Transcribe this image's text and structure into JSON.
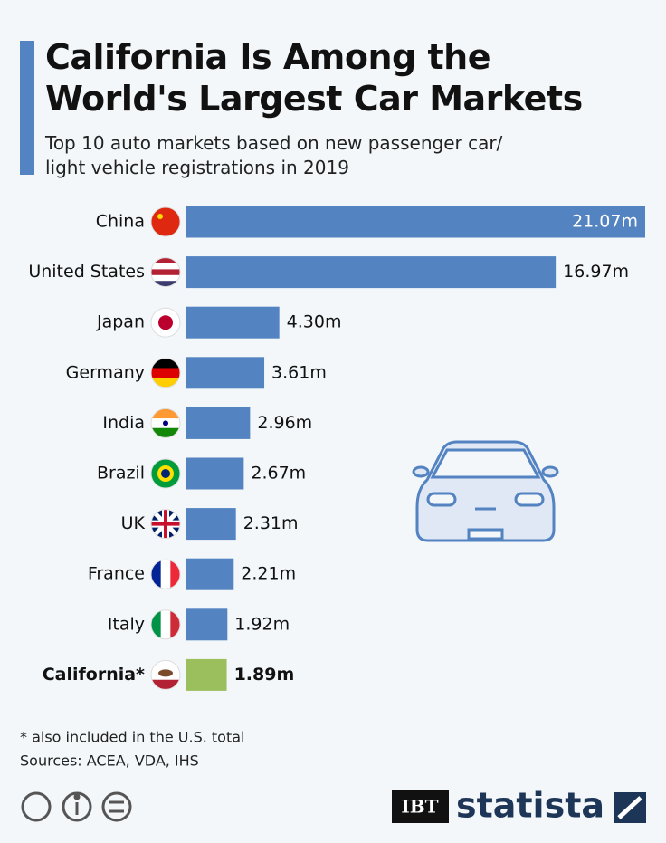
{
  "chart_data": {
    "type": "bar",
    "orientation": "horizontal",
    "title": "California Is Among the World's Largest Car Markets",
    "subtitle": "Top 10 auto markets based on new passenger car/ light vehicle registrations in 2019",
    "categories": [
      "China",
      "United States",
      "Japan",
      "Germany",
      "India",
      "Brazil",
      "UK",
      "France",
      "Italy",
      "California*"
    ],
    "values": [
      21.07,
      16.97,
      4.3,
      3.61,
      2.96,
      2.67,
      2.31,
      2.21,
      1.92,
      1.89
    ],
    "value_labels": [
      "21.07m",
      "16.97m",
      "4.30m",
      "3.61m",
      "2.96m",
      "2.67m",
      "2.31m",
      "2.21m",
      "1.92m",
      "1.89m"
    ],
    "colors": [
      "#5383c1",
      "#5383c1",
      "#5383c1",
      "#5383c1",
      "#5383c1",
      "#5383c1",
      "#5383c1",
      "#5383c1",
      "#5383c1",
      "#9cbf5e"
    ],
    "xlim": [
      0,
      21.07
    ],
    "footnote": "* also included in the U.S. total",
    "source": "Sources: ACEA, VDA, IHS",
    "publisher": "IBT",
    "brand": "statista"
  }
}
